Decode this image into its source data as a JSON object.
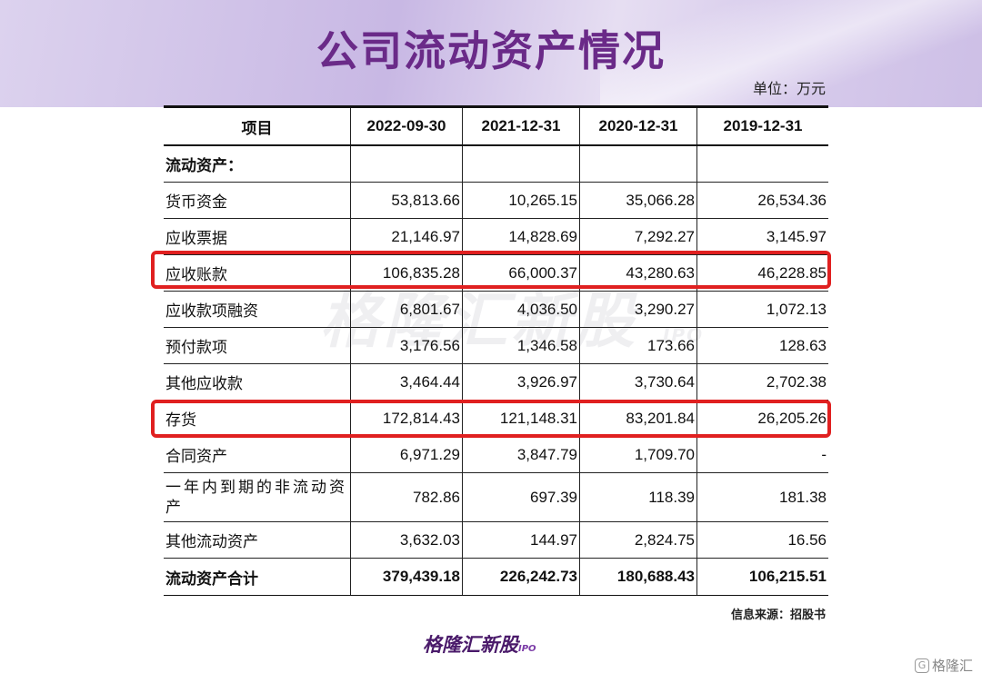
{
  "title": "公司流动资产情况",
  "unit": "单位：万元",
  "table": {
    "header": [
      "项目",
      "2022-09-30",
      "2021-12-31",
      "2020-12-31",
      "2019-12-31"
    ],
    "rows": [
      [
        "流动资产：",
        "",
        "",
        "",
        ""
      ],
      [
        "货币资金",
        "53,813.66",
        "10,265.15",
        "35,066.28",
        "26,534.36"
      ],
      [
        "应收票据",
        "21,146.97",
        "14,828.69",
        "7,292.27",
        "3,145.97"
      ],
      [
        "应收账款",
        "106,835.28",
        "66,000.37",
        "43,280.63",
        "46,228.85"
      ],
      [
        "应收款项融资",
        "6,801.67",
        "4,036.50",
        "3,290.27",
        "1,072.13"
      ],
      [
        "预付款项",
        "3,176.56",
        "1,346.58",
        "173.66",
        "128.63"
      ],
      [
        "其他应收款",
        "3,464.44",
        "3,926.97",
        "3,730.64",
        "2,702.38"
      ],
      [
        "存货",
        "172,814.43",
        "121,148.31",
        "83,201.84",
        "26,205.26"
      ],
      [
        "合同资产",
        "6,971.29",
        "3,847.79",
        "1,709.70",
        "-"
      ],
      [
        "一年内到期的非流动资产",
        "782.86",
        "697.39",
        "118.39",
        "181.38"
      ],
      [
        "其他流动资产",
        "3,632.03",
        "144.97",
        "2,824.75",
        "16.56"
      ],
      [
        "流动资产合计",
        "379,439.18",
        "226,242.73",
        "180,688.43",
        "106,215.51"
      ]
    ]
  },
  "source": "信息来源：招股书",
  "watermark": {
    "text": "格隆汇新股",
    "sub": "IPO"
  },
  "bottom_logo": {
    "text": "格隆汇新股",
    "sub": "IPO"
  },
  "corner_badge": "格隆汇",
  "colors": {
    "title": "#6a2a88",
    "highlight": "#e02020",
    "band": "#c8b8e4"
  }
}
